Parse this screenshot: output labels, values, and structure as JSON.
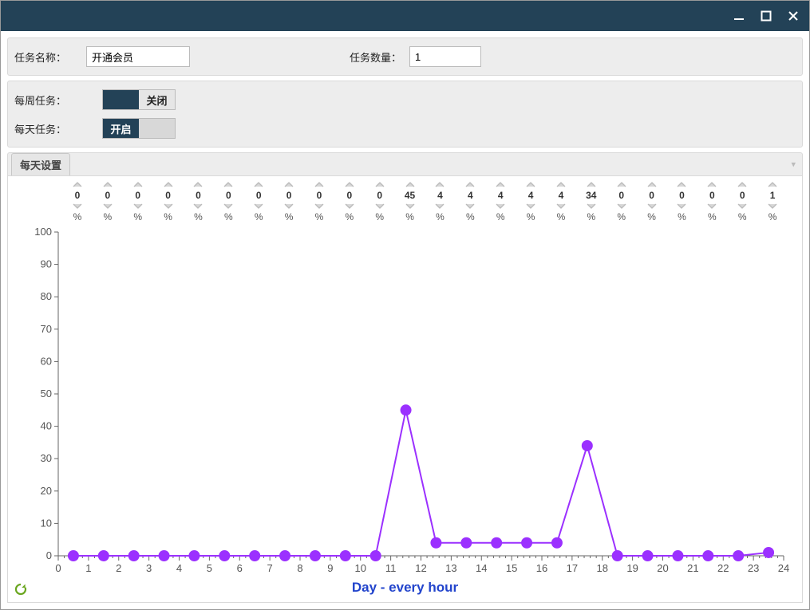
{
  "window": {
    "bg": "#234257"
  },
  "form": {
    "task_name_label": "任务名称：",
    "task_name_value": "开通会员",
    "task_qty_label": "任务数量：",
    "task_qty_value": "1",
    "weekly_label": "每周任务：",
    "weekly_state": "off",
    "weekly_off_text": "关闭",
    "daily_label": "每天任务：",
    "daily_state": "on",
    "daily_on_text": "开启"
  },
  "tabs": {
    "daily_settings": "每天设置"
  },
  "steppers": {
    "values": [
      0,
      0,
      0,
      0,
      0,
      0,
      0,
      0,
      0,
      0,
      0,
      45,
      4,
      4,
      4,
      4,
      4,
      34,
      0,
      0,
      0,
      0,
      0,
      1
    ],
    "pct_symbol": "%",
    "arrow_stroke": "#bbbbbb",
    "arrow_fill": "#d7d7d7"
  },
  "chart": {
    "type": "line",
    "series_color": "#9b30ff",
    "marker_fill": "#9b30ff",
    "marker_radius": 7,
    "line_width": 2,
    "background": "#ffffff",
    "axis_color": "#666666",
    "tick_color": "#666666",
    "label_color": "#555555",
    "label_fontsize": 13,
    "xlabel": "Day - every hour",
    "xlabel_color": "#2244cc",
    "xlabel_fontsize": 17,
    "ylim": [
      0,
      100
    ],
    "ytick_step": 10,
    "xlim": [
      0,
      24
    ],
    "xtick_step": 1,
    "x": [
      0.5,
      1.5,
      2.5,
      3.5,
      4.5,
      5.5,
      6.5,
      7.5,
      8.5,
      9.5,
      10.5,
      11.5,
      12.5,
      13.5,
      14.5,
      15.5,
      16.5,
      17.5,
      18.5,
      19.5,
      20.5,
      21.5,
      22.5,
      23.5
    ],
    "y": [
      0,
      0,
      0,
      0,
      0,
      0,
      0,
      0,
      0,
      0,
      0,
      45,
      4,
      4,
      4,
      4,
      4,
      34,
      0,
      0,
      0,
      0,
      0,
      1
    ]
  },
  "icons": {
    "refresh_color": "#6aa61f"
  }
}
